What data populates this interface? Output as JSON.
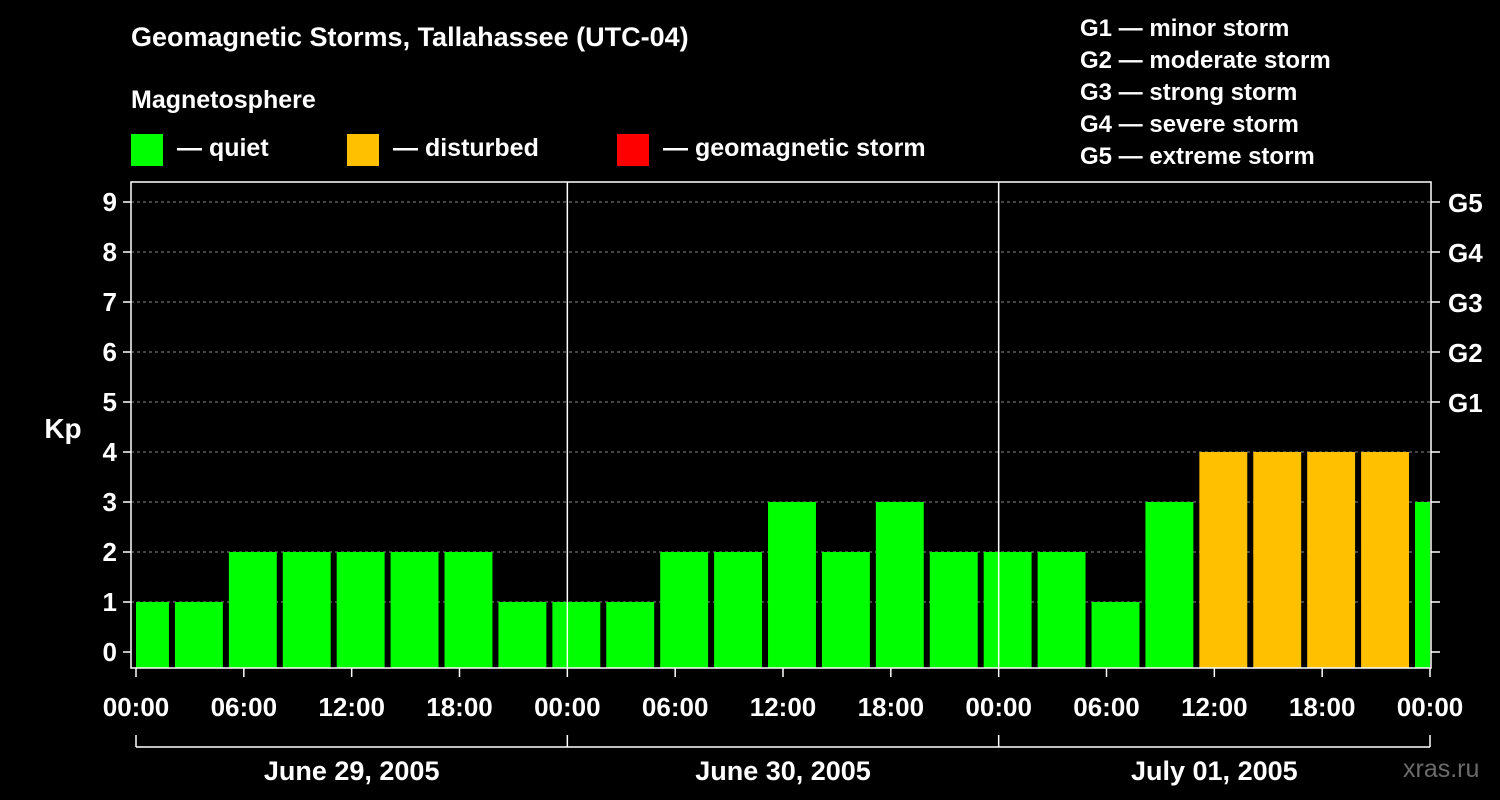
{
  "chart_data": {
    "type": "bar",
    "title": "Geomagnetic Storms, Tallahassee (UTC-04)",
    "subtitle": "Magnetosphere",
    "ylabel": "Kp",
    "ylim": [
      0,
      9
    ],
    "yticks": [
      "0",
      "1",
      "2",
      "3",
      "4",
      "5",
      "6",
      "7",
      "8",
      "9"
    ],
    "right_ticks": [
      {
        "kp": 5,
        "label": "G1"
      },
      {
        "kp": 6,
        "label": "G2"
      },
      {
        "kp": 7,
        "label": "G3"
      },
      {
        "kp": 8,
        "label": "G4"
      },
      {
        "kp": 9,
        "label": "G5"
      }
    ],
    "grid": true,
    "xlim_hours": [
      0,
      72
    ],
    "x_tick_labels": [
      "00:00",
      "06:00",
      "12:00",
      "18:00",
      "00:00",
      "06:00",
      "12:00",
      "18:00",
      "00:00",
      "06:00",
      "12:00",
      "18:00",
      "00:00"
    ],
    "dates": [
      "June 29, 2005",
      "June 30, 2005",
      "July 01, 2005"
    ],
    "legend": [
      {
        "color": "#00ff00",
        "label": "— quiet"
      },
      {
        "color": "#ffc000",
        "label": "— disturbed"
      },
      {
        "color": "#ff0000",
        "label": "— geomagnetic storm"
      }
    ],
    "storm_levels": [
      "G1 — minor storm",
      "G2 — moderate storm",
      "G3 — strong storm",
      "G4 — severe storm",
      "G5 — extreme storm"
    ],
    "bars": [
      {
        "start_h": 0,
        "end_h": 2,
        "kp": 1,
        "status": "quiet"
      },
      {
        "start_h": 2,
        "end_h": 5,
        "kp": 1,
        "status": "quiet"
      },
      {
        "start_h": 5,
        "end_h": 8,
        "kp": 2,
        "status": "quiet"
      },
      {
        "start_h": 8,
        "end_h": 11,
        "kp": 2,
        "status": "quiet"
      },
      {
        "start_h": 11,
        "end_h": 14,
        "kp": 2,
        "status": "quiet"
      },
      {
        "start_h": 14,
        "end_h": 17,
        "kp": 2,
        "status": "quiet"
      },
      {
        "start_h": 17,
        "end_h": 20,
        "kp": 2,
        "status": "quiet"
      },
      {
        "start_h": 20,
        "end_h": 23,
        "kp": 1,
        "status": "quiet"
      },
      {
        "start_h": 23,
        "end_h": 26,
        "kp": 1,
        "status": "quiet"
      },
      {
        "start_h": 26,
        "end_h": 29,
        "kp": 1,
        "status": "quiet"
      },
      {
        "start_h": 29,
        "end_h": 32,
        "kp": 2,
        "status": "quiet"
      },
      {
        "start_h": 32,
        "end_h": 35,
        "kp": 2,
        "status": "quiet"
      },
      {
        "start_h": 35,
        "end_h": 38,
        "kp": 3,
        "status": "quiet"
      },
      {
        "start_h": 38,
        "end_h": 41,
        "kp": 2,
        "status": "quiet"
      },
      {
        "start_h": 41,
        "end_h": 44,
        "kp": 3,
        "status": "quiet"
      },
      {
        "start_h": 44,
        "end_h": 47,
        "kp": 2,
        "status": "quiet"
      },
      {
        "start_h": 47,
        "end_h": 50,
        "kp": 2,
        "status": "quiet"
      },
      {
        "start_h": 50,
        "end_h": 53,
        "kp": 2,
        "status": "quiet"
      },
      {
        "start_h": 53,
        "end_h": 56,
        "kp": 1,
        "status": "quiet"
      },
      {
        "start_h": 56,
        "end_h": 59,
        "kp": 3,
        "status": "quiet"
      },
      {
        "start_h": 59,
        "end_h": 62,
        "kp": 4,
        "status": "disturbed"
      },
      {
        "start_h": 62,
        "end_h": 65,
        "kp": 4,
        "status": "disturbed"
      },
      {
        "start_h": 65,
        "end_h": 68,
        "kp": 4,
        "status": "disturbed"
      },
      {
        "start_h": 68,
        "end_h": 71,
        "kp": 4,
        "status": "disturbed"
      },
      {
        "start_h": 71,
        "end_h": 72,
        "kp": 3,
        "status": "quiet"
      }
    ],
    "status_colors": {
      "quiet": "#00ff00",
      "disturbed": "#ffc000",
      "storm": "#ff0000"
    }
  },
  "watermark": "xras.ru"
}
